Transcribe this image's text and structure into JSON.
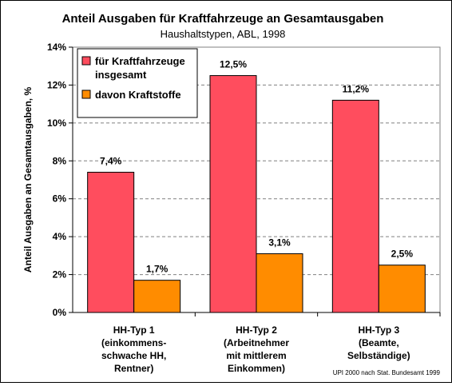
{
  "chart_data": {
    "type": "bar",
    "title": "Anteil Ausgaben für Kraftfahrzeuge an Gesamtausgaben",
    "subtitle": "Haushaltstypen, ABL, 1998",
    "ylabel": "Anteil Ausgaben an Gesamtausgaben, %",
    "ylim": [
      0,
      14
    ],
    "yticks": [
      0,
      2,
      4,
      6,
      8,
      10,
      12,
      14
    ],
    "ytick_labels": [
      "0%",
      "2%",
      "4%",
      "6%",
      "8%",
      "10%",
      "12%",
      "14%"
    ],
    "grid": "horizontal dashed",
    "legend_position": "top-left",
    "categories": [
      [
        "HH-Typ 1",
        "(einkommens-",
        "schwache HH,",
        "Rentner)"
      ],
      [
        "HH-Typ 2",
        "(Arbeitnehmer",
        "mit mittlerem",
        "Einkommen)"
      ],
      [
        "HH-Typ 3",
        "(Beamte,",
        "Selbständige)"
      ]
    ],
    "series": [
      {
        "name_lines": [
          "für Kraftfahrzeuge",
          "insgesamt"
        ],
        "color": "#ff4d5e",
        "values": [
          7.4,
          12.5,
          11.2
        ],
        "labels": [
          "7,4%",
          "12,5%",
          "11,2%"
        ]
      },
      {
        "name_lines": [
          "davon Kraftstoffe"
        ],
        "color": "#ff8c00",
        "values": [
          1.7,
          3.1,
          2.5
        ],
        "labels": [
          "1,7%",
          "3,1%",
          "2,5%"
        ]
      }
    ],
    "source": "UPI 2000 nach Stat. Bundesamt 1999"
  }
}
